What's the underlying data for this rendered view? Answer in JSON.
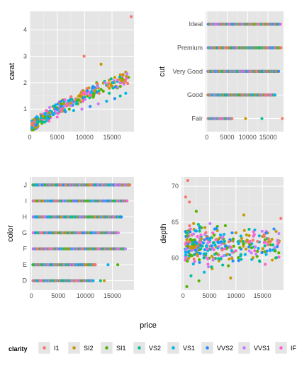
{
  "xlabel": "price",
  "background": "#e5e5e5",
  "grid_major": "#ffffff",
  "grid_minor": "#f2f2f2",
  "legend": {
    "title": "clarity",
    "position": "bottom",
    "items": [
      {
        "label": "I1",
        "color": "#f8766d"
      },
      {
        "label": "SI2",
        "color": "#c49a00"
      },
      {
        "label": "SI1",
        "color": "#53b400"
      },
      {
        "label": "VS2",
        "color": "#00c094"
      },
      {
        "label": "VS1",
        "color": "#00b6eb"
      },
      {
        "label": "VVS2",
        "color": "#1f8fff"
      },
      {
        "label": "VVS1",
        "color": "#c77cff"
      },
      {
        "label": "IF",
        "color": "#fb61d7"
      }
    ]
  },
  "chart_data": [
    {
      "type": "scatter",
      "ylabel": "carat",
      "x_axis": "price",
      "xlim": [
        0,
        19000
      ],
      "ylim": [
        0.15,
        4.7
      ],
      "xticks": [
        0,
        5000,
        10000,
        15000
      ],
      "xtick_labels": [
        "0",
        "5000",
        "10000",
        "15000"
      ],
      "yticks": [
        1,
        2,
        3,
        4
      ],
      "ytick_labels": [
        "1",
        "2",
        "3",
        "4"
      ],
      "grid": true,
      "points": [
        [
          500,
          0.25,
          "I1"
        ],
        [
          700,
          0.35,
          "VS2"
        ],
        [
          900,
          0.3,
          "SI2"
        ],
        [
          1200,
          0.45,
          "VS1"
        ],
        [
          1500,
          0.5,
          "SI1"
        ],
        [
          1800,
          0.55,
          "VVS2"
        ],
        [
          2100,
          0.6,
          "SI2"
        ],
        [
          2500,
          0.7,
          "VS2"
        ],
        [
          2800,
          0.75,
          "SI1"
        ],
        [
          3200,
          0.8,
          "VVS1"
        ],
        [
          3600,
          0.9,
          "SI2"
        ],
        [
          4000,
          0.9,
          "VS1"
        ],
        [
          4500,
          1.0,
          "SI2"
        ],
        [
          5000,
          1.05,
          "SI1"
        ],
        [
          5500,
          1.1,
          "VS2"
        ],
        [
          6000,
          1.05,
          "VVS2"
        ],
        [
          6500,
          1.15,
          "SI2"
        ],
        [
          7000,
          1.2,
          "SI1"
        ],
        [
          7500,
          1.25,
          "VS2"
        ],
        [
          8000,
          1.3,
          "SI2"
        ],
        [
          8500,
          1.2,
          "VS1"
        ],
        [
          9000,
          1.35,
          "SI1"
        ],
        [
          9500,
          1.5,
          "SI2"
        ],
        [
          10000,
          1.45,
          "VS2"
        ],
        [
          10500,
          1.5,
          "SI1"
        ],
        [
          11000,
          1.6,
          "VS1"
        ],
        [
          11500,
          1.55,
          "SI2"
        ],
        [
          12000,
          1.7,
          "VS2"
        ],
        [
          12500,
          1.8,
          "SI2"
        ],
        [
          13000,
          1.75,
          "SI1"
        ],
        [
          13500,
          2.0,
          "SI2"
        ],
        [
          14000,
          1.9,
          "VS2"
        ],
        [
          14500,
          2.1,
          "SI2"
        ],
        [
          15000,
          2.0,
          "SI1"
        ],
        [
          15500,
          2.2,
          "SI2"
        ],
        [
          16000,
          2.05,
          "VS1"
        ],
        [
          16500,
          2.3,
          "SI2"
        ],
        [
          17000,
          2.1,
          "SI1"
        ],
        [
          17500,
          2.4,
          "SI2"
        ],
        [
          18000,
          2.2,
          "SI1"
        ],
        [
          9900,
          3.0,
          "I1"
        ],
        [
          13000,
          2.7,
          "SI2"
        ],
        [
          18500,
          4.5,
          "I1"
        ],
        [
          11000,
          1.1,
          "VVS2"
        ],
        [
          12500,
          1.2,
          "VVS1"
        ],
        [
          14000,
          1.3,
          "VS1"
        ],
        [
          15500,
          1.4,
          "VVS2"
        ],
        [
          16500,
          1.5,
          "VS2"
        ],
        [
          17500,
          1.6,
          "VS1"
        ],
        [
          9500,
          1.0,
          "VVS1"
        ],
        [
          8000,
          0.95,
          "VS1"
        ],
        [
          6500,
          0.9,
          "VVS2"
        ],
        [
          5000,
          0.7,
          "IF"
        ],
        [
          3500,
          0.55,
          "IF"
        ],
        [
          7200,
          1.0,
          "SI1"
        ],
        [
          8800,
          1.2,
          "SI2"
        ],
        [
          4200,
          1.1,
          "SI2"
        ],
        [
          3000,
          0.95,
          "I1"
        ],
        [
          2000,
          0.8,
          "I1"
        ],
        [
          1200,
          0.7,
          "I1"
        ],
        [
          6000,
          1.35,
          "SI2"
        ],
        [
          9200,
          1.55,
          "SI2"
        ],
        [
          10800,
          1.8,
          "SI2"
        ],
        [
          12200,
          2.0,
          "SI1"
        ],
        [
          14500,
          1.6,
          "VS2"
        ],
        [
          16000,
          1.8,
          "SI1"
        ],
        [
          600,
          0.4,
          "SI1"
        ],
        [
          1000,
          0.45,
          "VS1"
        ],
        [
          1400,
          0.55,
          "SI2"
        ],
        [
          2300,
          0.65,
          "VVS2"
        ],
        [
          3300,
          0.72,
          "VS2"
        ],
        [
          4600,
          0.85,
          "SI1"
        ]
      ]
    },
    {
      "type": "scatter",
      "ylabel": "cut",
      "x_axis": "price",
      "xlim": [
        -300,
        18800
      ],
      "xticks": [
        0,
        5000,
        10000,
        15000
      ],
      "xtick_labels": [
        "0",
        "5000",
        "10000",
        "15000"
      ],
      "categories": [
        "Fair",
        "Good",
        "Very Good",
        "Premium",
        "Ideal"
      ],
      "grid": true,
      "rows": [
        {
          "category": "Ideal",
          "xmin": 300,
          "xmax": 18200
        },
        {
          "category": "Premium",
          "xmin": 300,
          "xmax": 18300
        },
        {
          "category": "Very Good",
          "xmin": 300,
          "xmax": 17700
        },
        {
          "category": "Good",
          "xmin": 300,
          "xmax": 16800
        },
        {
          "category": "Fair",
          "xmin": 300,
          "xmax": 6300,
          "extra": [
            [
              9500,
              "SI2"
            ],
            [
              13500,
              "VS2"
            ],
            [
              18500,
              "I1"
            ]
          ]
        }
      ]
    },
    {
      "type": "scatter",
      "ylabel": "color",
      "x_axis": "price",
      "xlim": [
        -300,
        19000
      ],
      "xticks": [
        0,
        5000,
        10000,
        15000
      ],
      "xtick_labels": [
        "0",
        "5000",
        "10000",
        "15000"
      ],
      "categories": [
        "D",
        "E",
        "F",
        "G",
        "H",
        "I",
        "J"
      ],
      "grid": true,
      "rows": [
        {
          "category": "J",
          "xmin": 300,
          "xmax": 18400
        },
        {
          "category": "I",
          "xmin": 300,
          "xmax": 17800
        },
        {
          "category": "H",
          "xmin": 300,
          "xmax": 16800
        },
        {
          "category": "G",
          "xmin": 300,
          "xmax": 16200
        },
        {
          "category": "F",
          "xmin": 300,
          "xmax": 17500
        },
        {
          "category": "E",
          "xmin": 300,
          "xmax": 12000,
          "extra": [
            [
              14200,
              "VS1"
            ],
            [
              16000,
              "SI1"
            ]
          ]
        },
        {
          "category": "D",
          "xmin": 300,
          "xmax": 11600,
          "extra": [
            [
              12800,
              "VS2"
            ],
            [
              13500,
              "SI2"
            ]
          ]
        }
      ]
    },
    {
      "type": "scatter",
      "ylabel": "depth",
      "x_axis": "price",
      "xlim": [
        -300,
        19000
      ],
      "ylim": [
        55.5,
        71.3
      ],
      "xticks": [
        0,
        5000,
        10000,
        15000
      ],
      "xtick_labels": [
        "0",
        "5000",
        "10000",
        "15000"
      ],
      "yticks": [
        60,
        65,
        70
      ],
      "ytick_labels": [
        "60",
        "65",
        "70"
      ],
      "grid": true,
      "points": [
        [
          900,
          70.8,
          "I1"
        ],
        [
          500,
          68.5,
          "I1"
        ],
        [
          1200,
          67.8,
          "I1"
        ],
        [
          2500,
          66.5,
          "SI1"
        ],
        [
          11500,
          66.0,
          "SI2"
        ],
        [
          18500,
          65.5,
          "I1"
        ],
        [
          700,
          56.0,
          "SI1"
        ],
        [
          1500,
          57.5,
          "VS2"
        ],
        [
          3000,
          56.8,
          "SI1"
        ],
        [
          4000,
          58.0,
          "VS1"
        ],
        [
          9000,
          57.2,
          "SI2"
        ],
        [
          5500,
          58.5,
          "SI2"
        ],
        [
          14500,
          59.5,
          "VS2"
        ],
        [
          17500,
          60.0,
          "SI1"
        ],
        [
          16000,
          63.5,
          "SI2"
        ],
        [
          12500,
          64.0,
          "VS2"
        ],
        [
          8000,
          64.5,
          "SI1"
        ],
        [
          6500,
          63.8,
          "SI2"
        ],
        [
          10500,
          62.0,
          "VS1"
        ],
        [
          13500,
          61.5,
          "SI2"
        ],
        [
          15500,
          62.5,
          "SI1"
        ],
        [
          17000,
          61.8,
          "VS2"
        ],
        [
          18000,
          62.2,
          "SI2"
        ],
        [
          7500,
          59.0,
          "VS2"
        ],
        [
          2000,
          64.8,
          "SI2"
        ],
        [
          3500,
          64.2,
          "SI1"
        ],
        [
          4500,
          63.0,
          "VVS2"
        ],
        [
          6000,
          60.5,
          "VS1"
        ],
        [
          9500,
          60.8,
          "SI1"
        ],
        [
          11000,
          59.8,
          "VS2"
        ],
        [
          12000,
          63.2,
          "SI2"
        ],
        [
          14000,
          60.2,
          "SI1"
        ],
        [
          16500,
          61.0,
          "VS1"
        ],
        [
          1000,
          63.5,
          "VVS1"
        ],
        [
          2200,
          59.5,
          "IF"
        ],
        [
          3300,
          62.5,
          "VVS2"
        ],
        [
          5000,
          61.2,
          "VS2"
        ],
        [
          7000,
          62.8,
          "SI2"
        ],
        [
          8500,
          61.5,
          "SI1"
        ],
        [
          10000,
          63.5,
          "SI2"
        ],
        [
          13000,
          62.0,
          "VS1"
        ],
        [
          15000,
          63.0,
          "SI2"
        ]
      ]
    }
  ]
}
